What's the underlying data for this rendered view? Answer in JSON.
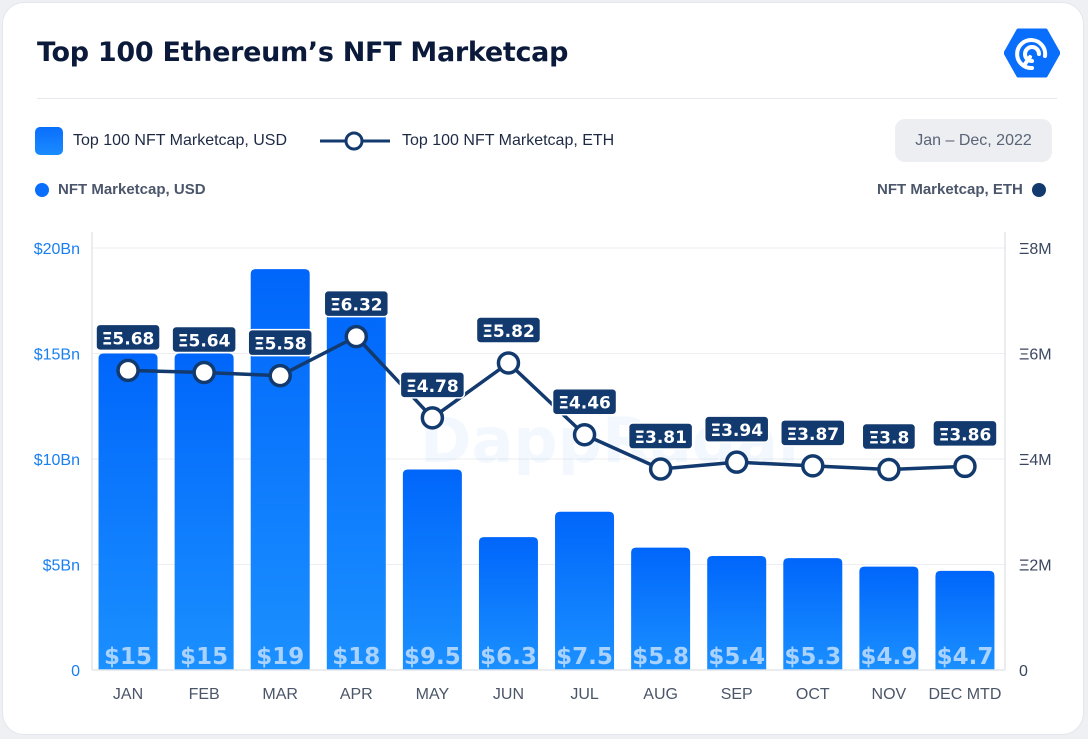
{
  "header": {
    "title": "Top 100 Ethereum’s NFT Marketcap",
    "logo_icon": "dappradar-logo-icon"
  },
  "legend": {
    "bar_label": "Top 100 NFT Marketcap, USD",
    "line_label": "Top 100 NFT Marketcap, ETH",
    "date_range": "Jan – Dec, 2022",
    "left_axis_label": "NFT Marketcap, USD",
    "right_axis_label": "NFT Marketcap, ETH"
  },
  "watermark": "DappRadar",
  "colors": {
    "bar": "#0a6efc",
    "line": "#133a6e",
    "left_axis": "#1a7ff0",
    "right_axis_dot": "#133a6e"
  },
  "chart_data": {
    "type": "bar",
    "title": "Top 100 Ethereum’s NFT Marketcap",
    "categories": [
      "JAN",
      "FEB",
      "MAR",
      "APR",
      "MAY",
      "JUN",
      "JUL",
      "AUG",
      "SEP",
      "OCT",
      "NOV",
      "DEC MTD"
    ],
    "series": [
      {
        "name": "Top 100 NFT Marketcap, USD",
        "type": "bar",
        "axis": "left",
        "unit": "Bn USD",
        "values": [
          15,
          15,
          19,
          18,
          9.5,
          6.3,
          7.5,
          5.8,
          5.4,
          5.3,
          4.9,
          4.7
        ],
        "labels": [
          "$15",
          "$15",
          "$19",
          "$18",
          "$9.5",
          "$6.3",
          "$7.5",
          "$5.8",
          "$5.4",
          "$5.3",
          "$4.9",
          "$4.7"
        ]
      },
      {
        "name": "Top 100 NFT Marketcap, ETH",
        "type": "line",
        "axis": "right",
        "unit": "M ETH",
        "values": [
          5.68,
          5.64,
          5.58,
          6.32,
          4.78,
          5.82,
          4.46,
          3.81,
          3.94,
          3.87,
          3.8,
          3.86
        ],
        "labels": [
          "Ξ5.68",
          "Ξ5.64",
          "Ξ5.58",
          "Ξ6.32",
          "Ξ4.78",
          "Ξ5.82",
          "Ξ4.46",
          "Ξ3.81",
          "Ξ3.94",
          "Ξ3.87",
          "Ξ3.8",
          "Ξ3.86"
        ]
      }
    ],
    "y_left": {
      "ylim": [
        0,
        20
      ],
      "ticks": [
        0,
        5,
        10,
        15,
        20
      ],
      "tick_labels": [
        "0",
        "$5Bn",
        "$10Bn",
        "$15Bn",
        "$20Bn"
      ]
    },
    "y_right": {
      "ylim": [
        0,
        8
      ],
      "ticks": [
        0,
        2,
        4,
        6,
        8
      ],
      "tick_labels": [
        "0",
        "Ξ2M",
        "Ξ4M",
        "Ξ6M",
        "Ξ8M"
      ]
    },
    "grid": true,
    "legend_placement": "top-left"
  }
}
